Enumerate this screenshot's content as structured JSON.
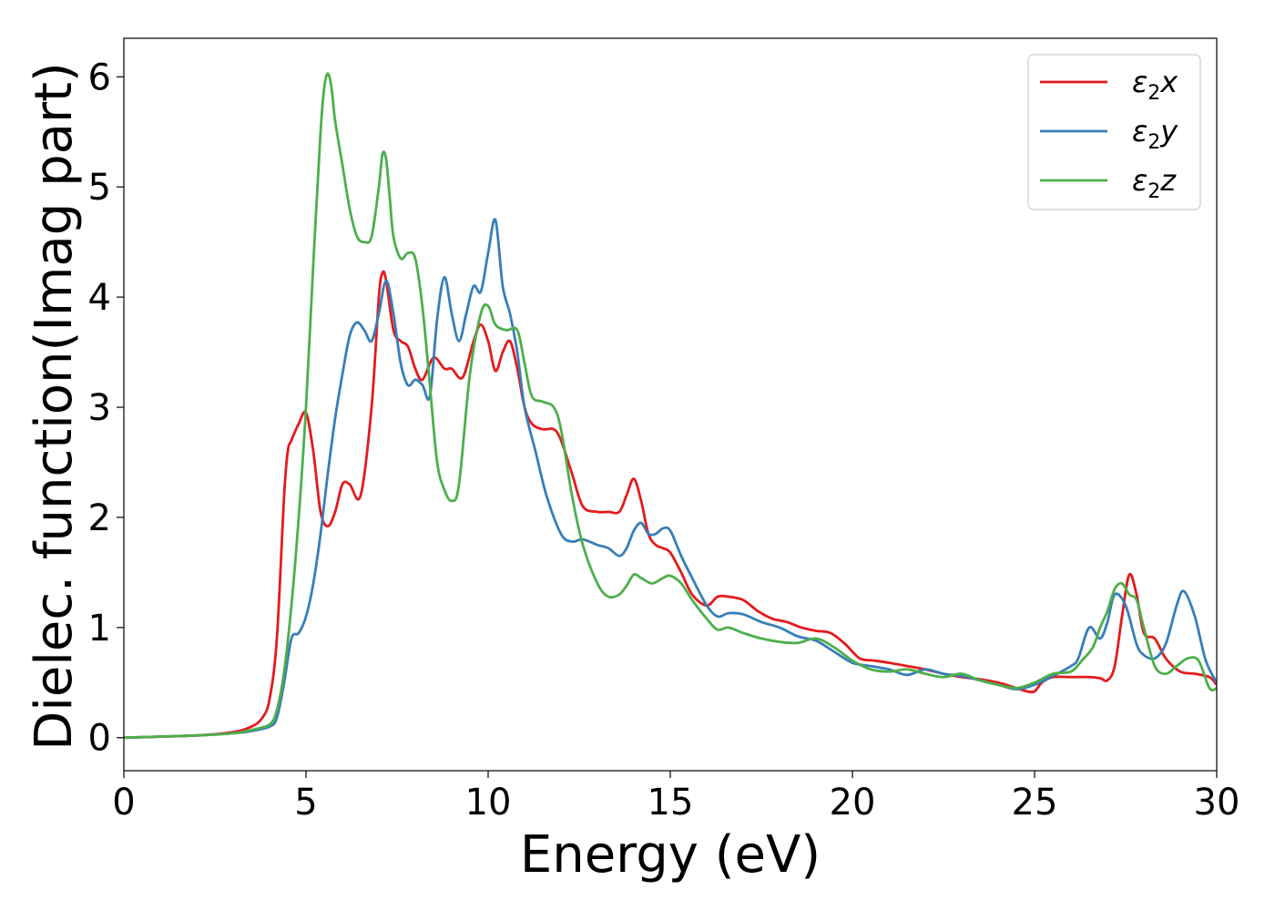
{
  "chart_data": {
    "type": "line",
    "xlabel": "Energy (eV)",
    "ylabel": "Dielec. function(Imag part)",
    "xlim": [
      0,
      30
    ],
    "ylim": [
      -0.3,
      6.35
    ],
    "xticks": [
      0,
      5,
      10,
      15,
      20,
      25,
      30
    ],
    "yticks": [
      0,
      1,
      2,
      3,
      4,
      5,
      6
    ],
    "grid": false,
    "legend_position": "top-right",
    "series": [
      {
        "name": "ε2x",
        "label_base": "ε",
        "label_sub": "2",
        "label_var": "x",
        "color": "#e41a1c",
        "x": [
          0,
          2,
          3,
          3.5,
          3.8,
          4.0,
          4.2,
          4.4,
          4.5,
          4.6,
          4.8,
          5.0,
          5.2,
          5.4,
          5.6,
          5.8,
          6.0,
          6.2,
          6.5,
          6.8,
          7.0,
          7.1,
          7.2,
          7.4,
          7.6,
          7.8,
          8.0,
          8.2,
          8.5,
          8.8,
          9.0,
          9.3,
          9.6,
          9.8,
          10.0,
          10.2,
          10.4,
          10.6,
          10.8,
          11.0,
          11.2,
          11.5,
          11.8,
          12.0,
          12.3,
          12.6,
          13.0,
          13.3,
          13.6,
          13.8,
          14.0,
          14.2,
          14.4,
          14.6,
          14.8,
          15.0,
          15.3,
          15.6,
          16.0,
          16.3,
          16.6,
          17.0,
          17.4,
          17.8,
          18.2,
          18.6,
          19.0,
          19.4,
          19.8,
          20.2,
          20.6,
          21.0,
          21.5,
          22.0,
          22.5,
          23.0,
          23.5,
          24.0,
          24.5,
          24.8,
          25.0,
          25.2,
          25.5,
          26.0,
          26.5,
          26.8,
          27.0,
          27.2,
          27.4,
          27.6,
          27.8,
          28.0,
          28.3,
          28.6,
          29.0,
          29.4,
          29.8,
          30.0
        ],
        "y": [
          0,
          0.02,
          0.05,
          0.1,
          0.18,
          0.35,
          0.9,
          2.2,
          2.6,
          2.7,
          2.85,
          2.95,
          2.6,
          2.05,
          1.92,
          2.05,
          2.3,
          2.3,
          2.2,
          3.0,
          4.0,
          4.22,
          4.15,
          3.7,
          3.6,
          3.55,
          3.35,
          3.25,
          3.45,
          3.35,
          3.35,
          3.27,
          3.6,
          3.75,
          3.6,
          3.33,
          3.5,
          3.6,
          3.35,
          3.0,
          2.85,
          2.8,
          2.8,
          2.7,
          2.4,
          2.1,
          2.05,
          2.05,
          2.05,
          2.2,
          2.35,
          2.15,
          1.85,
          1.75,
          1.72,
          1.68,
          1.5,
          1.3,
          1.2,
          1.28,
          1.28,
          1.25,
          1.15,
          1.08,
          1.05,
          1.0,
          0.97,
          0.95,
          0.85,
          0.72,
          0.7,
          0.68,
          0.65,
          0.62,
          0.58,
          0.55,
          0.53,
          0.5,
          0.45,
          0.42,
          0.42,
          0.5,
          0.55,
          0.55,
          0.55,
          0.54,
          0.52,
          0.65,
          1.1,
          1.48,
          1.3,
          0.95,
          0.9,
          0.72,
          0.6,
          0.58,
          0.55,
          0.48
        ]
      },
      {
        "name": "ε2y",
        "label_base": "ε",
        "label_sub": "2",
        "label_var": "y",
        "color": "#377eb8",
        "x": [
          0,
          2,
          3,
          3.5,
          4.0,
          4.2,
          4.4,
          4.6,
          4.8,
          5.0,
          5.2,
          5.4,
          5.6,
          5.8,
          6.0,
          6.2,
          6.4,
          6.6,
          6.8,
          7.0,
          7.2,
          7.4,
          7.6,
          7.8,
          8.0,
          8.2,
          8.4,
          8.6,
          8.8,
          9.0,
          9.2,
          9.4,
          9.6,
          9.8,
          10.0,
          10.2,
          10.4,
          10.6,
          10.8,
          11.0,
          11.3,
          11.6,
          12.0,
          12.3,
          12.6,
          13.0,
          13.3,
          13.6,
          13.8,
          14.0,
          14.2,
          14.4,
          14.6,
          14.8,
          15.0,
          15.3,
          15.6,
          16.0,
          16.3,
          16.6,
          17.0,
          17.5,
          18.0,
          18.5,
          19.0,
          19.5,
          20.0,
          20.5,
          21.0,
          21.5,
          22.0,
          22.5,
          23.0,
          23.5,
          24.0,
          24.5,
          25.0,
          25.5,
          26.0,
          26.2,
          26.5,
          26.8,
          27.0,
          27.2,
          27.5,
          27.8,
          28.0,
          28.3,
          28.6,
          28.9,
          29.1,
          29.4,
          29.7,
          30.0
        ],
        "y": [
          0,
          0.02,
          0.04,
          0.06,
          0.1,
          0.18,
          0.5,
          0.9,
          0.95,
          1.1,
          1.4,
          1.85,
          2.4,
          2.9,
          3.3,
          3.65,
          3.77,
          3.7,
          3.6,
          3.85,
          4.15,
          3.85,
          3.4,
          3.2,
          3.25,
          3.2,
          3.1,
          3.8,
          4.18,
          3.85,
          3.6,
          3.85,
          4.1,
          4.05,
          4.4,
          4.7,
          4.1,
          3.85,
          3.5,
          3.0,
          2.6,
          2.2,
          1.85,
          1.78,
          1.8,
          1.75,
          1.72,
          1.65,
          1.72,
          1.88,
          1.95,
          1.85,
          1.85,
          1.9,
          1.88,
          1.65,
          1.45,
          1.2,
          1.1,
          1.13,
          1.12,
          1.05,
          1.0,
          0.92,
          0.88,
          0.78,
          0.68,
          0.65,
          0.62,
          0.57,
          0.62,
          0.58,
          0.56,
          0.52,
          0.48,
          0.44,
          0.48,
          0.56,
          0.65,
          0.72,
          1.0,
          0.9,
          1.05,
          1.3,
          1.2,
          0.85,
          0.75,
          0.72,
          0.85,
          1.2,
          1.33,
          1.1,
          0.7,
          0.5
        ]
      },
      {
        "name": "ε2z",
        "label_base": "ε",
        "label_sub": "2",
        "label_var": "z",
        "color": "#4daf4a",
        "x": [
          0,
          2,
          3,
          3.5,
          4.0,
          4.2,
          4.4,
          4.6,
          4.8,
          5.0,
          5.2,
          5.4,
          5.5,
          5.6,
          5.7,
          5.8,
          6.0,
          6.2,
          6.4,
          6.6,
          6.8,
          7.0,
          7.1,
          7.2,
          7.3,
          7.4,
          7.6,
          7.8,
          8.0,
          8.2,
          8.4,
          8.6,
          8.8,
          9.0,
          9.2,
          9.5,
          9.8,
          10.0,
          10.2,
          10.5,
          10.8,
          11.0,
          11.2,
          11.5,
          11.8,
          12.0,
          12.3,
          12.6,
          13.0,
          13.3,
          13.6,
          13.8,
          14.0,
          14.2,
          14.5,
          14.8,
          15.0,
          15.3,
          15.6,
          16.0,
          16.3,
          16.6,
          17.0,
          17.5,
          18.0,
          18.5,
          19.0,
          19.5,
          20.0,
          20.5,
          21.0,
          21.5,
          22.0,
          22.5,
          23.0,
          23.5,
          24.0,
          24.5,
          25.0,
          25.5,
          26.0,
          26.3,
          26.6,
          26.8,
          27.0,
          27.2,
          27.4,
          27.6,
          27.8,
          28.0,
          28.3,
          28.6,
          28.9,
          29.2,
          29.5,
          29.8,
          30.0
        ],
        "y": [
          0,
          0.02,
          0.04,
          0.07,
          0.12,
          0.25,
          0.6,
          1.2,
          2.0,
          3.0,
          4.3,
          5.5,
          5.9,
          6.03,
          5.9,
          5.6,
          5.2,
          4.8,
          4.55,
          4.5,
          4.55,
          5.0,
          5.3,
          5.25,
          4.9,
          4.55,
          4.35,
          4.4,
          4.35,
          3.9,
          3.2,
          2.5,
          2.25,
          2.15,
          2.3,
          3.3,
          3.85,
          3.92,
          3.75,
          3.7,
          3.7,
          3.4,
          3.1,
          3.05,
          3.0,
          2.8,
          2.2,
          1.75,
          1.4,
          1.28,
          1.3,
          1.38,
          1.48,
          1.45,
          1.4,
          1.45,
          1.47,
          1.4,
          1.25,
          1.08,
          0.98,
          1.0,
          0.95,
          0.9,
          0.87,
          0.86,
          0.9,
          0.82,
          0.7,
          0.62,
          0.6,
          0.62,
          0.58,
          0.55,
          0.58,
          0.52,
          0.48,
          0.45,
          0.5,
          0.58,
          0.6,
          0.7,
          0.82,
          1.0,
          1.15,
          1.35,
          1.4,
          1.3,
          1.25,
          1.0,
          0.65,
          0.58,
          0.65,
          0.72,
          0.7,
          0.45,
          0.45
        ]
      }
    ]
  }
}
